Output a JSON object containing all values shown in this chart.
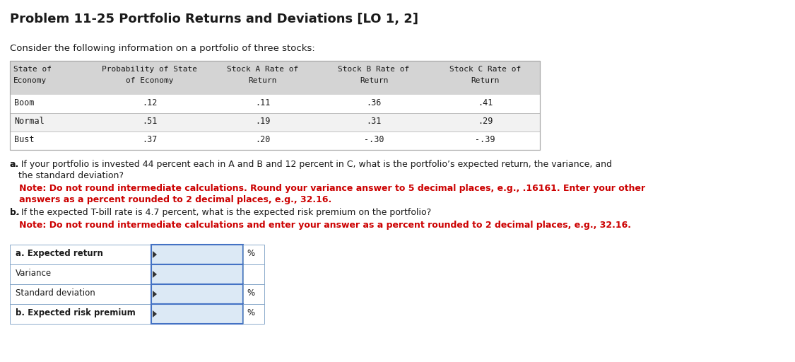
{
  "title": "Problem 11-25 Portfolio Returns and Deviations [LO 1, 2]",
  "subtitle": "Consider the following information on a portfolio of three stocks:",
  "col_labels_line1": [
    "State of",
    "Probability of State",
    "Stock A Rate of",
    "Stock B Rate of",
    "Stock C Rate of"
  ],
  "col_labels_line2": [
    "Economy",
    "of Economy",
    "Return",
    "Return",
    "Return"
  ],
  "table_rows": [
    [
      "Boom",
      ".12",
      ".11",
      ".36",
      ".41"
    ],
    [
      "Normal",
      ".51",
      ".19",
      ".31",
      ".29"
    ],
    [
      "Bust",
      ".37",
      ".20",
      "-.30",
      "-.39"
    ]
  ],
  "part_a_line1": "a. If your portfolio is invested 44 percent each in A and B and 12 percent in C, what is the portfolio’s expected return, the variance, and",
  "part_a_line2": "   the standard deviation?",
  "part_a_note1": "   Note: Do not round intermediate calculations. Round your variance answer to 5 decimal places, e.g., .16161. Enter your other",
  "part_a_note2": "   answers as a percent rounded to 2 decimal places, e.g., 32.16.",
  "part_b_line1": "b. If the expected T-bill rate is 4.7 percent, what is the expected risk premium on the portfolio?",
  "part_b_note1": "   Note: Do not round intermediate calculations and enter your answer as a percent rounded to 2 decimal places, e.g., 32.16.",
  "answer_labels": [
    "a. Expected return",
    "Variance",
    "Standard deviation",
    "b. Expected risk premium"
  ],
  "answer_has_pct": [
    true,
    false,
    true,
    true
  ],
  "answer_bold": [
    true,
    false,
    false,
    true
  ],
  "bg_color": "#ffffff",
  "table_header_bg": "#d4d4d4",
  "table_row_bg_white": "#ffffff",
  "table_row_bg_gray": "#f2f2f2",
  "input_box_bg": "#dce9f5",
  "input_border_color": "#4472c4",
  "note_color": "#cc0000",
  "text_color": "#1a1a1a",
  "table_border_color": "#aaaaaa",
  "ans_border_color": "#7a9ec4"
}
